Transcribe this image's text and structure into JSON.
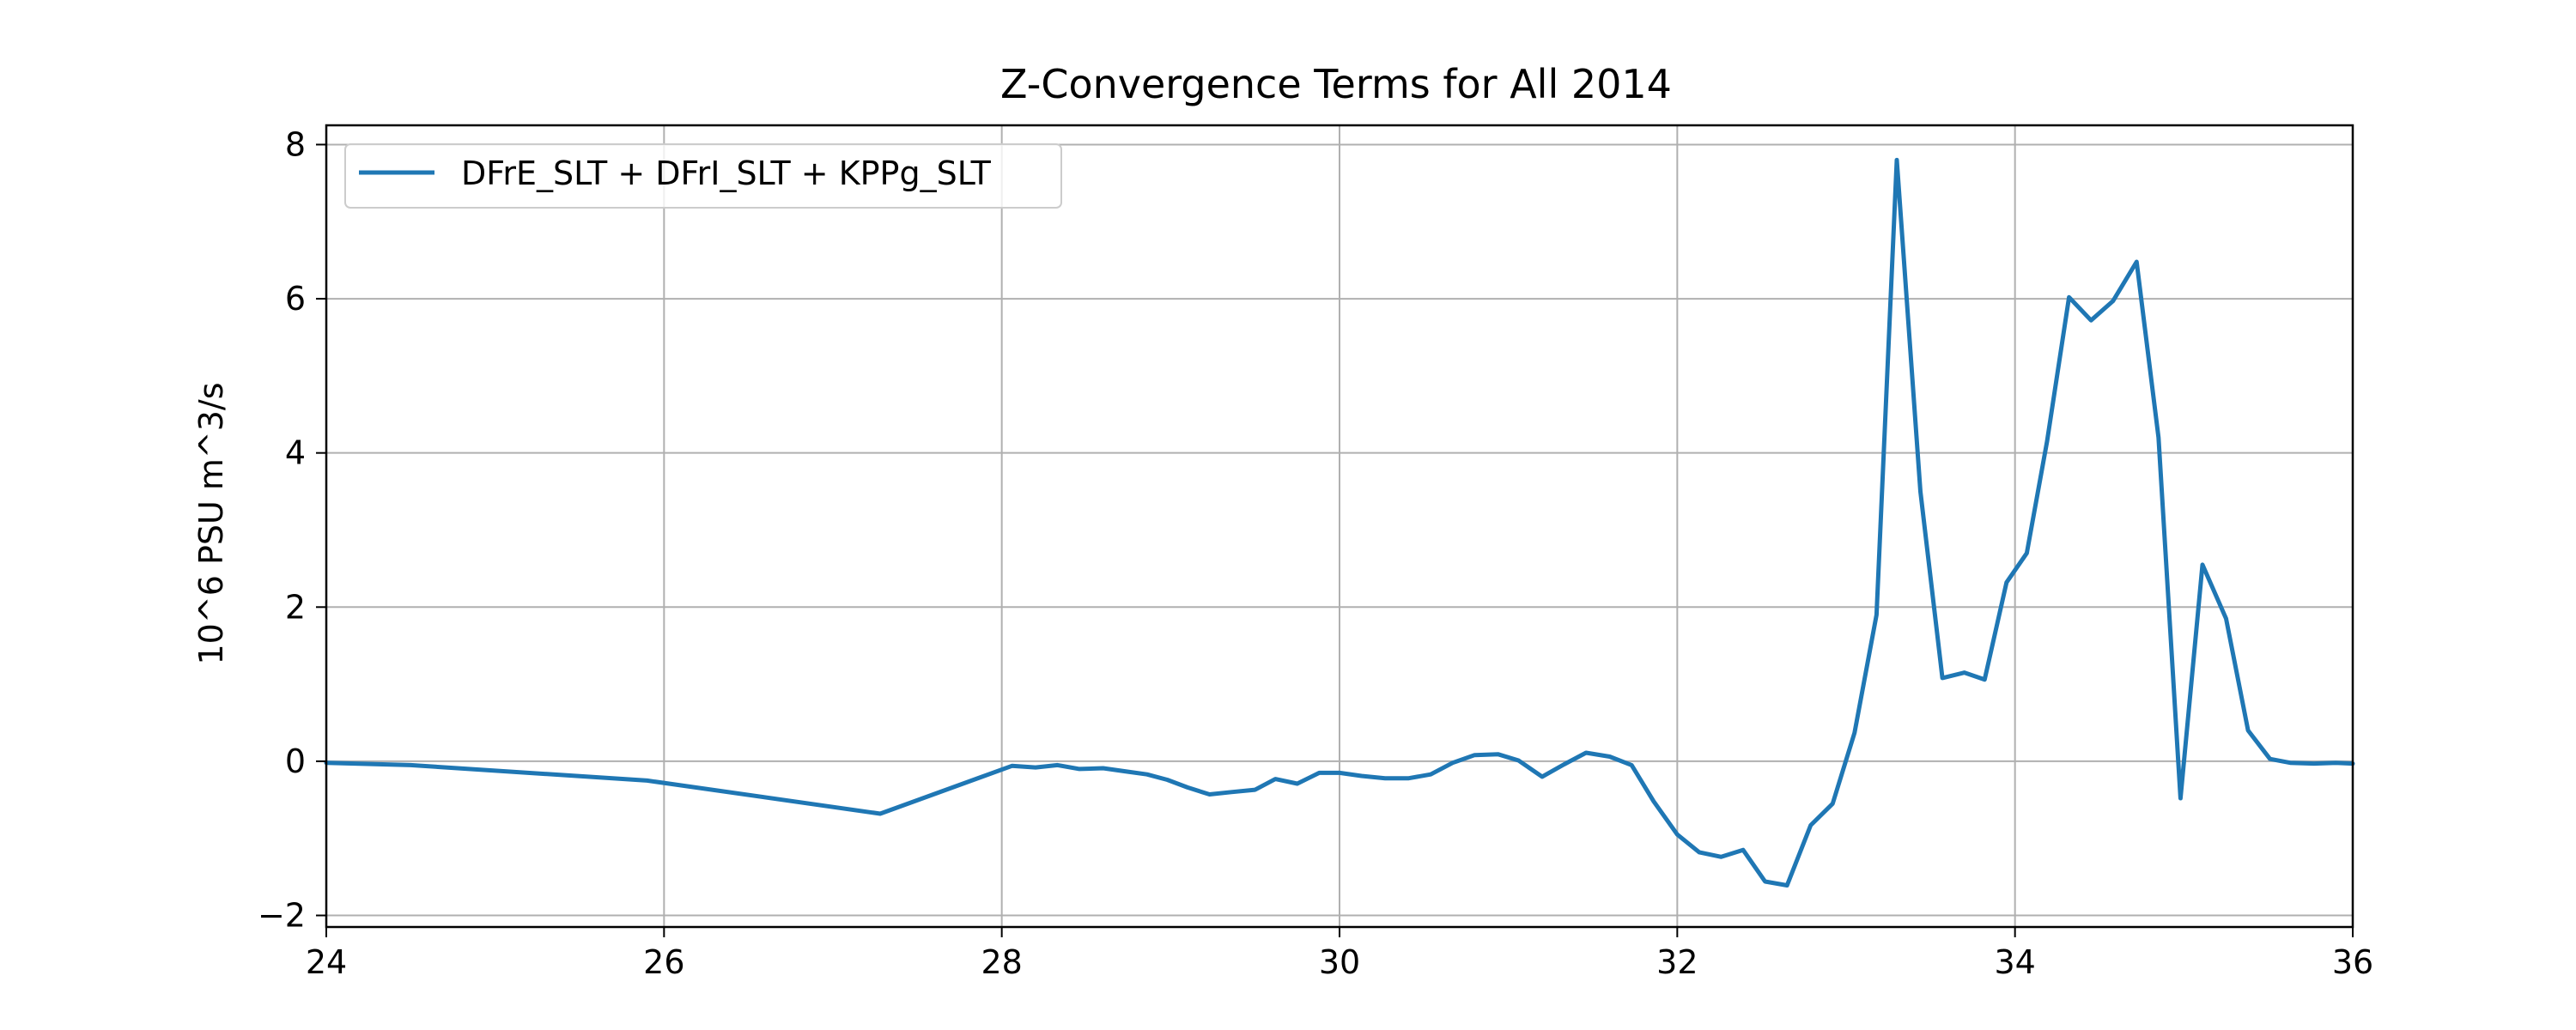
{
  "chart_data": {
    "type": "line",
    "title": "Z-Convergence Terms for All 2014",
    "xlabel": "",
    "ylabel": "10^6 PSU m^3/s",
    "xlim": [
      24,
      36
    ],
    "ylim": [
      -2.15,
      8.25
    ],
    "xticks": [
      24,
      26,
      28,
      30,
      32,
      34,
      36
    ],
    "yticks": [
      -2,
      0,
      2,
      4,
      6,
      8
    ],
    "xtick_labels": [
      "24",
      "26",
      "28",
      "30",
      "32",
      "34",
      "36"
    ],
    "ytick_labels": [
      "−2",
      "0",
      "2",
      "4",
      "6",
      "8"
    ],
    "grid": true,
    "legend_location": "upper left",
    "series": [
      {
        "name": "DFrE_SLT + DFrI_SLT + KPPg_SLT",
        "color": "#1f77b4",
        "x": [
          24.0,
          24.5,
          25.9,
          27.28,
          28.06,
          28.2,
          28.33,
          28.46,
          28.6,
          28.73,
          28.86,
          28.98,
          29.1,
          29.23,
          29.36,
          29.5,
          29.62,
          29.75,
          29.88,
          30.0,
          30.13,
          30.27,
          30.41,
          30.54,
          30.67,
          30.8,
          30.94,
          31.06,
          31.2,
          31.33,
          31.46,
          31.6,
          31.73,
          31.86,
          32.0,
          32.13,
          32.26,
          32.39,
          32.52,
          32.65,
          32.79,
          32.92,
          33.05,
          33.18,
          33.3,
          33.44,
          33.57,
          33.7,
          33.82,
          33.95,
          34.07,
          34.19,
          34.32,
          34.45,
          34.58,
          34.72,
          34.85,
          34.98,
          35.11,
          35.25,
          35.38,
          35.51,
          35.63,
          35.77,
          35.9,
          36.0
        ],
        "y": [
          -0.02,
          -0.05,
          -0.25,
          -0.68,
          -0.06,
          -0.08,
          -0.05,
          -0.1,
          -0.09,
          -0.13,
          -0.17,
          -0.24,
          -0.34,
          -0.43,
          -0.4,
          -0.37,
          -0.23,
          -0.29,
          -0.15,
          -0.15,
          -0.19,
          -0.22,
          -0.22,
          -0.17,
          -0.02,
          0.08,
          0.09,
          0.01,
          -0.2,
          -0.04,
          0.11,
          0.06,
          -0.05,
          -0.52,
          -0.95,
          -1.18,
          -1.24,
          -1.15,
          -1.56,
          -1.61,
          -0.83,
          -0.55,
          0.37,
          1.9,
          7.8,
          3.5,
          1.08,
          1.15,
          1.06,
          2.32,
          2.7,
          4.15,
          6.02,
          5.72,
          5.97,
          6.48,
          4.2,
          -0.48,
          2.55,
          1.85,
          0.4,
          0.03,
          -0.02,
          -0.03,
          -0.02,
          -0.03
        ]
      }
    ]
  }
}
